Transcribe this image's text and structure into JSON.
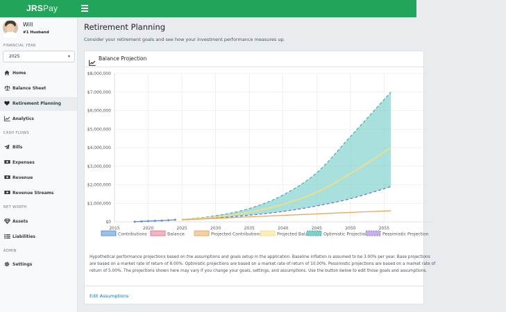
{
  "app": {
    "logo_bold": "JRS",
    "logo_rest": "Pay"
  },
  "user": {
    "name": "Will",
    "role": "#1 Husband"
  },
  "sidebar": {
    "year_label": "FINANCIAL YEAR",
    "year_value": "2025",
    "items": [
      {
        "label": "Home",
        "icon": "home-icon"
      },
      {
        "label": "Balance Sheet",
        "icon": "scale-icon"
      },
      {
        "label": "Retirement Planning",
        "icon": "heart-icon"
      },
      {
        "label": "Analytics",
        "icon": "chart-line-icon"
      },
      {
        "section": "CASH FLOWS"
      },
      {
        "label": "Bills",
        "icon": "paper-plane-icon"
      },
      {
        "label": "Expenses",
        "icon": "money-icon"
      },
      {
        "label": "Revenue",
        "icon": "money-icon"
      },
      {
        "label": "Revenue Streams",
        "icon": "money-icon"
      },
      {
        "section": "NET WORTH"
      },
      {
        "label": "Assets",
        "icon": "gem-icon"
      },
      {
        "label": "Liabilities",
        "icon": "list-icon"
      },
      {
        "section": "ADMIN"
      },
      {
        "label": "Settings",
        "icon": "gear-icon"
      }
    ],
    "active_label": "Retirement Planning"
  },
  "page": {
    "title": "Retirement Planning",
    "subtitle": "Consider your retirement goals and see how your investment performance measures up."
  },
  "card": {
    "title": "Balance Projection",
    "description_lines": [
      "Hypothetical performance projections based on the assumptions and goals setup in the application. Baseline inflation is assumed to be 3.00% per year. Base projections",
      "are based on a market rate of return of 8.00%. Optimistic projections are based on a market rate of return of 10.00%. Pessimistic projections are based on a market rate of",
      "return of 5.00%. The projections shown here may vary if you change your goals, settings, and assumptions. Use the button below to edit those goals and assumptions."
    ],
    "edit_link": "Edit Assumptions"
  },
  "colors": {
    "brand": "#22a55b",
    "contributions": "#5b8fd6",
    "balance": "#e8728a",
    "projected_contributions": "#e9a55a",
    "projected_balance": "#f5dd83",
    "optimistic_fill": "#79d0cc",
    "optimistic_line": "#4ea8a5",
    "pessimistic": "#9a72d6",
    "link": "#1a6fb3"
  },
  "chart_data": {
    "type": "line",
    "x_ticks": [
      2015,
      2020,
      2025,
      2030,
      2035,
      2040,
      2045,
      2050,
      2055
    ],
    "xlim": [
      2015,
      2060
    ],
    "y_ticks": [
      "$0",
      "$1,000,000",
      "$2,000,000",
      "$3,000,000",
      "$4,000,000",
      "$5,000,000",
      "$6,000,000",
      "$7,000,000",
      "$8,000,000"
    ],
    "ylim": [
      0,
      8000000
    ],
    "grid": true,
    "legend_position": "bottom",
    "legend": [
      "Contributions",
      "Balance",
      "Projected Contributions",
      "Projected Balance",
      "Optimistic Projection",
      "Pessimistic Projection"
    ],
    "series": [
      {
        "name": "Contributions",
        "x": [
          2018,
          2019,
          2020,
          2021,
          2022,
          2023,
          2024
        ],
        "y": [
          10000,
          25000,
          40000,
          55000,
          72000,
          90000,
          110000
        ]
      },
      {
        "name": "Projected Contributions",
        "x": [
          2025,
          2030,
          2035,
          2040,
          2045,
          2050,
          2056
        ],
        "y": [
          110000,
          190000,
          270000,
          350000,
          430000,
          510000,
          600000
        ]
      },
      {
        "name": "Projected Balance",
        "x": [
          2025,
          2030,
          2035,
          2040,
          2045,
          2050,
          2056
        ],
        "y": [
          120000,
          270000,
          520000,
          950000,
          1600000,
          2600000,
          4000000
        ]
      },
      {
        "name": "Optimistic Projection",
        "x": [
          2025,
          2030,
          2035,
          2040,
          2045,
          2050,
          2056
        ],
        "y": [
          130000,
          330000,
          720000,
          1450000,
          2650000,
          4600000,
          7000000
        ]
      },
      {
        "name": "Pessimistic Projection",
        "x": [
          2025,
          2030,
          2035,
          2040,
          2045,
          2050,
          2056
        ],
        "y": [
          110000,
          210000,
          360000,
          560000,
          860000,
          1250000,
          1900000
        ]
      }
    ]
  }
}
